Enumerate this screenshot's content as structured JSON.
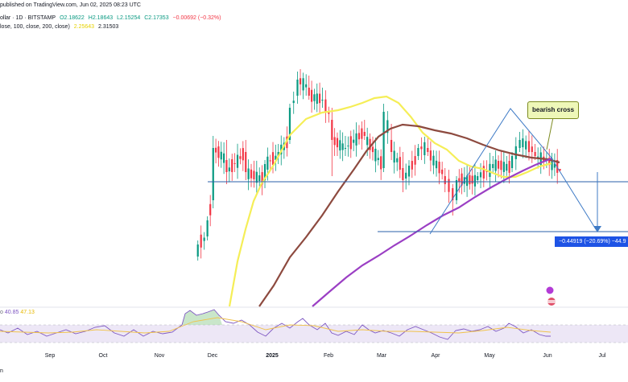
{
  "header": {
    "published": "published on TradingView.com, Jun 02, 2025 08:23 UTC",
    "symbol": "ollar · 1D · BITSTAMP",
    "open": "O2.18622",
    "high": "H2.18643",
    "low": "L2.15254",
    "close": "C2.17353",
    "change": "−0.00692 (−0.32%)",
    "ma_line_prefix": "lose, 100, close, 200, close)",
    "ma_val1": "2.25643",
    "ma_val2": "2.31503"
  },
  "annotations": {
    "bearish_cross": "bearish cross",
    "measure": "−0.44919 (−20.69%) −44.9"
  },
  "rsi": {
    "prefix": "o",
    "value": "40.85",
    "ma": "47.13"
  },
  "footer": {
    "text": "n"
  },
  "colors": {
    "up": "#089981",
    "down": "#f23645",
    "ma50": "#f5ee57",
    "ma100": "#8d4a3f",
    "ma200": "#9b3fc4",
    "drawing": "#2962ff",
    "rsi": "#7e57c2"
  },
  "chart_data": {
    "type": "candlestick",
    "title": "",
    "x_labels": [
      "Sep",
      "Oct",
      "Nov",
      "Dec",
      "2025",
      "Feb",
      "Mar",
      "Apr",
      "May",
      "Jun",
      "Jul"
    ],
    "ohlc_sampled": [
      {
        "t": "Nov 25",
        "o": 1.1,
        "h": 1.3,
        "l": 1.05,
        "c": 1.25
      },
      {
        "t": "Nov 30",
        "o": 1.35,
        "h": 1.6,
        "l": 1.3,
        "c": 1.55
      },
      {
        "t": "Dec 03",
        "o": 1.8,
        "h": 2.6,
        "l": 1.7,
        "c": 2.45
      },
      {
        "t": "Dec 10",
        "o": 2.3,
        "h": 2.55,
        "l": 2.0,
        "c": 2.15
      },
      {
        "t": "Dec 20",
        "o": 2.4,
        "h": 2.55,
        "l": 2.05,
        "c": 2.15
      },
      {
        "t": "Dec 30",
        "o": 2.05,
        "h": 2.3,
        "l": 1.95,
        "c": 2.25
      },
      {
        "t": "Jan 06",
        "o": 2.35,
        "h": 2.5,
        "l": 2.25,
        "c": 2.4
      },
      {
        "t": "Jan 12",
        "o": 2.55,
        "h": 3.0,
        "l": 2.5,
        "c": 2.95
      },
      {
        "t": "Jan 16",
        "o": 3.1,
        "h": 3.4,
        "l": 3.0,
        "c": 3.3
      },
      {
        "t": "Jan 22",
        "o": 3.2,
        "h": 3.35,
        "l": 3.05,
        "c": 3.1
      },
      {
        "t": "Jan 29",
        "o": 3.05,
        "h": 3.2,
        "l": 2.95,
        "c": 3.05
      },
      {
        "t": "Feb 03",
        "o": 2.8,
        "h": 2.95,
        "l": 2.1,
        "c": 2.55
      },
      {
        "t": "Feb 10",
        "o": 2.45,
        "h": 2.6,
        "l": 2.35,
        "c": 2.45
      },
      {
        "t": "Feb 20",
        "o": 2.65,
        "h": 2.8,
        "l": 2.55,
        "c": 2.6
      },
      {
        "t": "Mar 02",
        "o": 2.2,
        "h": 3.0,
        "l": 2.15,
        "c": 2.9
      },
      {
        "t": "Mar 06",
        "o": 2.55,
        "h": 2.75,
        "l": 2.3,
        "c": 2.4
      },
      {
        "t": "Mar 12",
        "o": 2.2,
        "h": 2.4,
        "l": 1.9,
        "c": 2.05
      },
      {
        "t": "Mar 20",
        "o": 2.35,
        "h": 2.5,
        "l": 2.3,
        "c": 2.45
      },
      {
        "t": "Mar 25",
        "o": 2.45,
        "h": 2.6,
        "l": 2.35,
        "c": 2.4
      },
      {
        "t": "Apr 03",
        "o": 2.1,
        "h": 2.2,
        "l": 1.9,
        "c": 2.0
      },
      {
        "t": "Apr 07",
        "o": 1.95,
        "h": 2.0,
        "l": 1.61,
        "c": 1.8
      },
      {
        "t": "Apr 09",
        "o": 1.8,
        "h": 2.1,
        "l": 1.75,
        "c": 2.05
      },
      {
        "t": "Apr 20",
        "o": 2.05,
        "h": 2.15,
        "l": 2.0,
        "c": 2.1
      },
      {
        "t": "Apr 28",
        "o": 2.2,
        "h": 2.35,
        "l": 2.15,
        "c": 2.25
      },
      {
        "t": "May 08",
        "o": 2.2,
        "h": 2.4,
        "l": 2.15,
        "c": 2.35
      },
      {
        "t": "May 12",
        "o": 2.45,
        "h": 2.65,
        "l": 2.4,
        "c": 2.55
      },
      {
        "t": "May 20",
        "o": 2.4,
        "h": 2.5,
        "l": 2.3,
        "c": 2.35
      },
      {
        "t": "May 26",
        "o": 2.3,
        "h": 2.4,
        "l": 2.2,
        "c": 2.3
      },
      {
        "t": "Jun 02",
        "o": 2.19,
        "h": 2.19,
        "l": 2.15,
        "c": 2.17
      }
    ],
    "indicators": {
      "ma50": "yellow",
      "ma100": "brown",
      "ma200": "purple"
    },
    "rsi": {
      "last": 40.85,
      "ma": 47.13
    }
  }
}
